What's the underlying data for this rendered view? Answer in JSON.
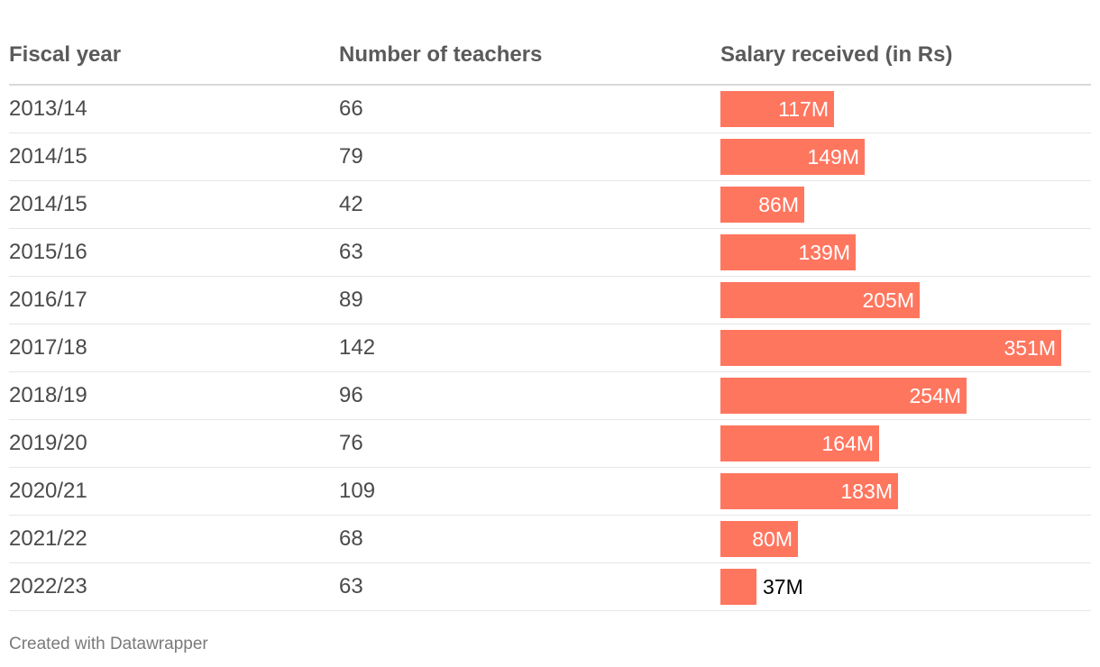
{
  "table": {
    "headers": {
      "fiscal_year": "Fiscal year",
      "teachers": "Number of teachers",
      "salary": "Salary received (in Rs)"
    }
  },
  "chart_data": {
    "type": "bar",
    "orientation": "horizontal",
    "title": "",
    "categories": [
      "2013/14",
      "2014/15",
      "2014/15",
      "2015/16",
      "2016/17",
      "2017/18",
      "2018/19",
      "2019/20",
      "2020/21",
      "2021/22",
      "2022/23"
    ],
    "teachers": [
      "66",
      "79",
      "42",
      "63",
      "89",
      "142",
      "96",
      "76",
      "109",
      "68",
      "63"
    ],
    "values": [
      117,
      149,
      86,
      139,
      205,
      351,
      254,
      164,
      183,
      80,
      37
    ],
    "value_labels": [
      "117M",
      "149M",
      "86M",
      "139M",
      "205M",
      "351M",
      "254M",
      "164M",
      "183M",
      "80M",
      "37M"
    ],
    "unit": "M",
    "xlim": [
      0,
      382
    ],
    "xlabel": "Salary received (in Rs)",
    "ylabel": "Fiscal year",
    "grid": false
  },
  "colors": {
    "bar": "#ff765f"
  },
  "footer": {
    "credit": "Created with Datawrapper"
  }
}
